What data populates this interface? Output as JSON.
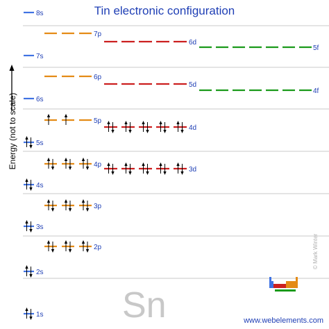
{
  "title": "Tin electronic configuration",
  "y_axis_label": "Energy (not to scale)",
  "element_symbol": "Sn",
  "website": "www.webelements.com",
  "credit": "© Mark Winter",
  "colors": {
    "s": "#3f72e3",
    "p": "#e48b16",
    "d": "#cc1f1f",
    "f": "#1a9a1a",
    "text": "#1f3fb5",
    "grid": "#c8c8c8"
  },
  "orbitals": [
    {
      "label": "1s",
      "type": "s",
      "electrons": 2
    },
    {
      "label": "2s",
      "type": "s",
      "electrons": 2
    },
    {
      "label": "2p",
      "type": "p",
      "electrons": 6
    },
    {
      "label": "3s",
      "type": "s",
      "electrons": 2
    },
    {
      "label": "3p",
      "type": "p",
      "electrons": 6
    },
    {
      "label": "4s",
      "type": "s",
      "electrons": 2
    },
    {
      "label": "3d",
      "type": "d",
      "electrons": 10
    },
    {
      "label": "4p",
      "type": "p",
      "electrons": 6
    },
    {
      "label": "5s",
      "type": "s",
      "electrons": 2
    },
    {
      "label": "4d",
      "type": "d",
      "electrons": 10
    },
    {
      "label": "5p",
      "type": "p",
      "electrons": 2
    },
    {
      "label": "6s",
      "type": "s",
      "electrons": 0
    },
    {
      "label": "4f",
      "type": "f",
      "electrons": 0
    },
    {
      "label": "5d",
      "type": "d",
      "electrons": 0
    },
    {
      "label": "6p",
      "type": "p",
      "electrons": 0
    },
    {
      "label": "7s",
      "type": "s",
      "electrons": 0
    },
    {
      "label": "5f",
      "type": "f",
      "electrons": 0
    },
    {
      "label": "6d",
      "type": "d",
      "electrons": 0
    },
    {
      "label": "7p",
      "type": "p",
      "electrons": 0
    },
    {
      "label": "8s",
      "type": "s",
      "electrons": 0
    }
  ]
}
